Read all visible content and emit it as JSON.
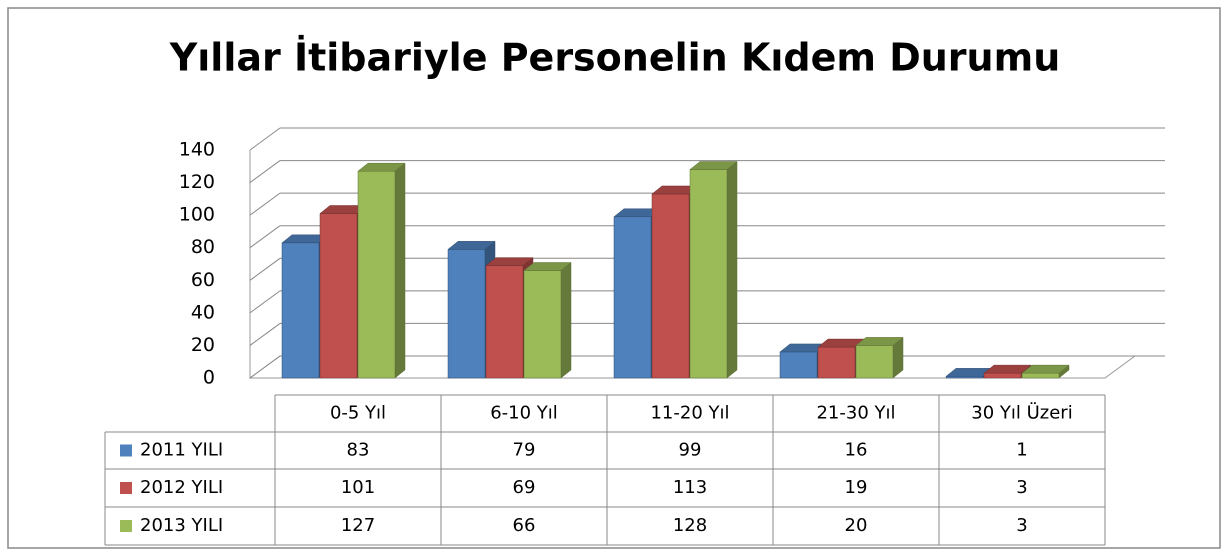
{
  "chart_data": {
    "type": "bar",
    "title": "Yıllar İtibariyle Personelin Kıdem Durumu",
    "categories": [
      "0-5 Yıl",
      "6-10 Yıl",
      "11-20 Yıl",
      "21-30 Yıl",
      "30 Yıl Üzeri"
    ],
    "series": [
      {
        "name": "2011 YILI",
        "color": "#4f81bd",
        "values": [
          83,
          79,
          99,
          16,
          1
        ]
      },
      {
        "name": "2012 YILI",
        "color": "#c0504d",
        "values": [
          101,
          69,
          113,
          19,
          3
        ]
      },
      {
        "name": "2013 YILI",
        "color": "#9bbb59",
        "values": [
          127,
          66,
          128,
          20,
          3
        ]
      }
    ],
    "ylim": [
      0,
      140
    ],
    "yticks": [
      0,
      20,
      40,
      60,
      80,
      100,
      120,
      140
    ],
    "grid": true
  }
}
